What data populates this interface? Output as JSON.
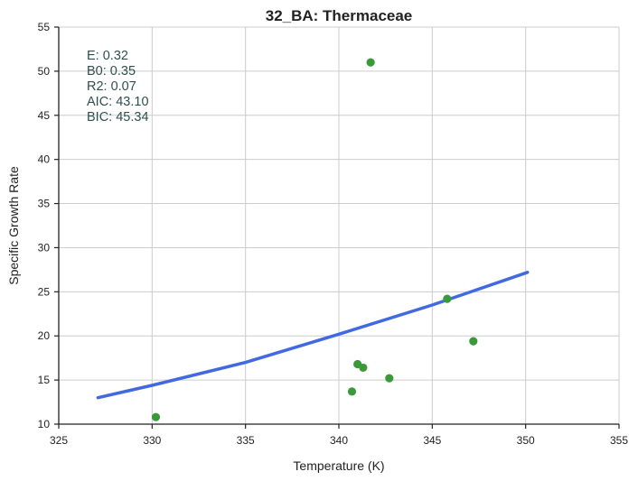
{
  "chart_data": {
    "type": "scatter",
    "title": "32_BA: Thermaceae",
    "xlabel": "Temperature (K)",
    "ylabel": "Specific Growth Rate",
    "xlim": [
      325,
      355
    ],
    "ylim": [
      10,
      55
    ],
    "xticks": [
      325,
      330,
      335,
      340,
      345,
      350,
      355
    ],
    "yticks": [
      10,
      15,
      20,
      25,
      30,
      35,
      40,
      45,
      50,
      55
    ],
    "xtick_labels": [
      "325",
      "330",
      "335",
      "340",
      "345",
      "350",
      "355"
    ],
    "ytick_labels": [
      "10",
      "15",
      "20",
      "25",
      "30",
      "35",
      "40",
      "45",
      "50",
      "55"
    ],
    "grid": true,
    "points": {
      "color": "#3a9a3a",
      "x": [
        330.2,
        340.7,
        341.0,
        341.3,
        341.7,
        342.7,
        345.8,
        347.2
      ],
      "y": [
        10.8,
        13.7,
        16.8,
        16.4,
        51.0,
        15.2,
        24.2,
        19.4
      ]
    },
    "fit_line": {
      "color": "#4169e1",
      "x": [
        327.1,
        330.0,
        335.0,
        340.0,
        345.0,
        350.1
      ],
      "y": [
        13.0,
        14.4,
        17.0,
        20.2,
        23.5,
        27.2
      ]
    },
    "stats": [
      "E:  0.32",
      "B0:  0.35",
      "R2:  0.07",
      "AIC: 43.10",
      "BIC: 45.34"
    ],
    "stats_color": "#2f4f4f"
  }
}
